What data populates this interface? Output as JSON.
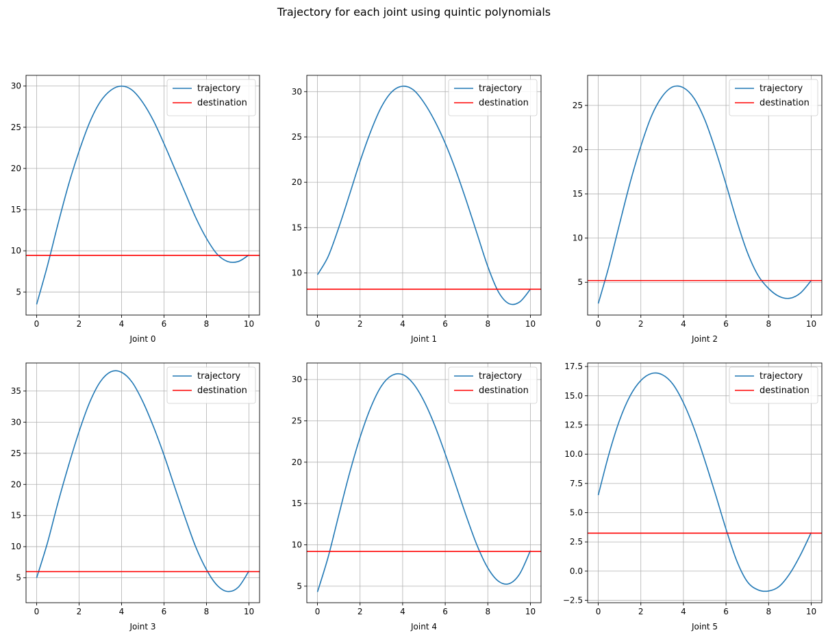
{
  "figure": {
    "title": "Trajectory for each joint using quintic polynomials"
  },
  "colors": {
    "trajectory": "#1f77b4",
    "destination": "#ff0000",
    "grid": "#b0b0b0"
  },
  "chart_data": [
    {
      "type": "line",
      "xlabel": "Joint 0",
      "ylabel": "",
      "xlim": [
        -0.5,
        10.5
      ],
      "ylim": [
        2.2,
        31.3
      ],
      "xticks": [
        0,
        2,
        4,
        6,
        8,
        10
      ],
      "yticks": [
        5,
        10,
        15,
        20,
        25,
        30
      ],
      "grid": true,
      "legend": "top-right",
      "series": [
        {
          "name": "trajectory",
          "kind": "line",
          "x": [
            0,
            0.5,
            1,
            1.5,
            2,
            2.5,
            3,
            3.5,
            4,
            4.5,
            5,
            5.5,
            6,
            6.5,
            7,
            7.5,
            8,
            8.5,
            9,
            9.5,
            10
          ],
          "y": [
            3.5,
            8.1,
            13.2,
            18.0,
            22.1,
            25.6,
            28.1,
            29.5,
            30.0,
            29.5,
            28.0,
            25.8,
            23.0,
            20.0,
            17.0,
            14.0,
            11.5,
            9.6,
            8.7,
            8.7,
            9.5
          ]
        },
        {
          "name": "destination",
          "kind": "hline",
          "y": 9.45
        }
      ]
    },
    {
      "type": "line",
      "xlabel": "Joint 1",
      "ylabel": "",
      "xlim": [
        -0.5,
        10.5
      ],
      "ylim": [
        5.35,
        31.8
      ],
      "xticks": [
        0,
        2,
        4,
        6,
        8,
        10
      ],
      "yticks": [
        10,
        15,
        20,
        25,
        30
      ],
      "grid": true,
      "legend": "top-right",
      "series": [
        {
          "name": "trajectory",
          "kind": "line",
          "x": [
            0,
            0.5,
            1,
            1.5,
            2,
            2.5,
            3,
            3.5,
            4,
            4.5,
            5,
            5.5,
            6,
            6.5,
            7,
            7.5,
            8,
            8.5,
            9,
            9.5,
            10
          ],
          "y": [
            9.8,
            11.8,
            15.0,
            18.6,
            22.3,
            25.6,
            28.3,
            30.0,
            30.6,
            30.2,
            28.8,
            26.8,
            24.3,
            21.3,
            17.9,
            14.3,
            10.7,
            7.9,
            6.6,
            6.8,
            8.2
          ]
        },
        {
          "name": "destination",
          "kind": "hline",
          "y": 8.2
        }
      ]
    },
    {
      "type": "line",
      "xlabel": "Joint 2",
      "ylabel": "",
      "xlim": [
        -0.5,
        10.5
      ],
      "ylim": [
        1.3,
        28.4
      ],
      "xticks": [
        0,
        2,
        4,
        6,
        8,
        10
      ],
      "yticks": [
        5,
        10,
        15,
        20,
        25
      ],
      "grid": true,
      "legend": "top-right",
      "series": [
        {
          "name": "trajectory",
          "kind": "line",
          "x": [
            0,
            0.5,
            1,
            1.5,
            2,
            2.5,
            3,
            3.5,
            4,
            4.5,
            5,
            5.5,
            6,
            6.5,
            7,
            7.5,
            8,
            8.5,
            9,
            9.5,
            10
          ],
          "y": [
            2.6,
            6.8,
            11.6,
            16.3,
            20.4,
            23.8,
            26.0,
            27.1,
            27.0,
            25.8,
            23.4,
            20.0,
            16.1,
            12.0,
            8.4,
            5.8,
            4.3,
            3.4,
            3.2,
            3.8,
            5.2
          ]
        },
        {
          "name": "destination",
          "kind": "hline",
          "y": 5.2
        }
      ]
    },
    {
      "type": "line",
      "xlabel": "Joint 3",
      "ylabel": "",
      "xlim": [
        -0.5,
        10.5
      ],
      "ylim": [
        1.0,
        39.5
      ],
      "xticks": [
        0,
        2,
        4,
        6,
        8,
        10
      ],
      "yticks": [
        5,
        10,
        15,
        20,
        25,
        30,
        35
      ],
      "grid": true,
      "legend": "top-right",
      "series": [
        {
          "name": "trajectory",
          "kind": "line",
          "x": [
            0,
            0.5,
            1,
            1.5,
            2,
            2.5,
            3,
            3.5,
            4,
            4.5,
            5,
            5.5,
            6,
            6.5,
            7,
            7.5,
            8,
            8.5,
            9,
            9.5,
            10
          ],
          "y": [
            5.0,
            10.5,
            17.0,
            23.0,
            28.5,
            33.2,
            36.5,
            38.1,
            38.0,
            36.4,
            33.3,
            29.3,
            24.7,
            19.6,
            14.6,
            9.9,
            6.3,
            3.8,
            2.8,
            3.5,
            6.1
          ]
        },
        {
          "name": "destination",
          "kind": "hline",
          "y": 6.0
        }
      ]
    },
    {
      "type": "line",
      "xlabel": "Joint 4",
      "ylabel": "",
      "xlim": [
        -0.5,
        10.5
      ],
      "ylim": [
        3.0,
        32.0
      ],
      "xticks": [
        0,
        2,
        4,
        6,
        8,
        10
      ],
      "yticks": [
        5,
        10,
        15,
        20,
        25,
        30
      ],
      "grid": true,
      "legend": "top-right",
      "series": [
        {
          "name": "trajectory",
          "kind": "line",
          "x": [
            0,
            0.5,
            1,
            1.5,
            2,
            2.5,
            3,
            3.5,
            4,
            4.5,
            5,
            5.5,
            6,
            6.5,
            7,
            7.5,
            8,
            8.5,
            9,
            9.5,
            10
          ],
          "y": [
            4.3,
            8.5,
            13.6,
            18.6,
            23.0,
            26.6,
            29.2,
            30.5,
            30.6,
            29.5,
            27.4,
            24.5,
            21.0,
            17.2,
            13.4,
            9.9,
            7.2,
            5.6,
            5.3,
            6.5,
            9.3
          ]
        },
        {
          "name": "destination",
          "kind": "hline",
          "y": 9.2
        }
      ]
    },
    {
      "type": "line",
      "xlabel": "Joint 5",
      "ylabel": "",
      "xlim": [
        -0.5,
        10.5
      ],
      "ylim": [
        -2.7,
        17.8
      ],
      "xticks": [
        0,
        2,
        4,
        6,
        8,
        10
      ],
      "yticks": [
        -2.5,
        0.0,
        2.5,
        5.0,
        7.5,
        10.0,
        12.5,
        15.0,
        17.5
      ],
      "ytick_labels": [
        "−2.5",
        "0.0",
        "2.5",
        "5.0",
        "7.5",
        "10.0",
        "12.5",
        "15.0",
        "17.5"
      ],
      "grid": true,
      "legend": "top-right",
      "series": [
        {
          "name": "trajectory",
          "kind": "line",
          "x": [
            0,
            0.5,
            1,
            1.5,
            2,
            2.5,
            3,
            3.5,
            4,
            4.5,
            5,
            5.5,
            6,
            6.5,
            7,
            7.5,
            8,
            8.5,
            9,
            9.5,
            10
          ],
          "y": [
            6.5,
            10.0,
            12.9,
            15.0,
            16.3,
            16.9,
            16.8,
            16.0,
            14.4,
            12.2,
            9.5,
            6.6,
            3.6,
            0.9,
            -0.9,
            -1.6,
            -1.7,
            -1.3,
            -0.2,
            1.4,
            3.3
          ]
        },
        {
          "name": "destination",
          "kind": "hline",
          "y": 3.25
        }
      ]
    }
  ]
}
